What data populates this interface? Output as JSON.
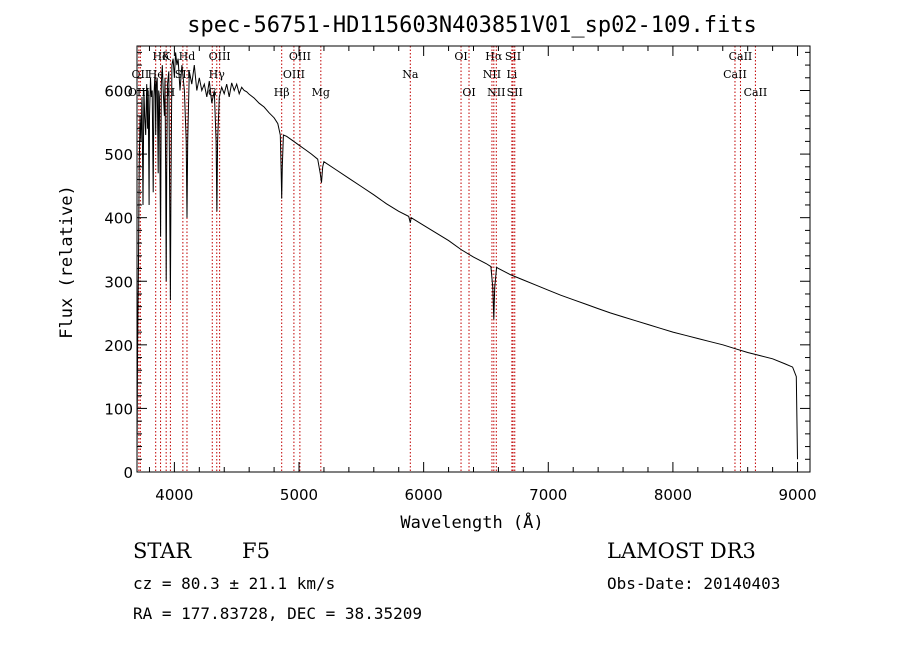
{
  "chart_data": {
    "type": "line",
    "title": "spec-56751-HD115603N403851V01_sp02-109.fits",
    "xlabel": "Wavelength (Å)",
    "ylabel": "Flux (relative)",
    "xlim": [
      3700,
      9100
    ],
    "ylim": [
      0,
      670
    ],
    "x_ticks": [
      4000,
      5000,
      6000,
      7000,
      8000,
      9000
    ],
    "y_ticks": [
      0,
      100,
      200,
      300,
      400,
      500,
      600
    ],
    "series": [
      {
        "name": "spectrum",
        "points": [
          [
            3700,
            20
          ],
          [
            3705,
            200
          ],
          [
            3712,
            330
          ],
          [
            3718,
            480
          ],
          [
            3725,
            560
          ],
          [
            3732,
            520
          ],
          [
            3740,
            590
          ],
          [
            3748,
            420
          ],
          [
            3755,
            600
          ],
          [
            3762,
            560
          ],
          [
            3770,
            530
          ],
          [
            3778,
            610
          ],
          [
            3785,
            540
          ],
          [
            3790,
            600
          ],
          [
            3797,
            420
          ],
          [
            3800,
            560
          ],
          [
            3808,
            620
          ],
          [
            3815,
            590
          ],
          [
            3822,
            600
          ],
          [
            3830,
            440
          ],
          [
            3836,
            590
          ],
          [
            3845,
            630
          ],
          [
            3850,
            530
          ],
          [
            3855,
            610
          ],
          [
            3862,
            620
          ],
          [
            3870,
            470
          ],
          [
            3874,
            600
          ],
          [
            3880,
            590
          ],
          [
            3889,
            370
          ],
          [
            3895,
            610
          ],
          [
            3903,
            640
          ],
          [
            3910,
            600
          ],
          [
            3920,
            560
          ],
          [
            3925,
            620
          ],
          [
            3930,
            460
          ],
          [
            3934,
            300
          ],
          [
            3938,
            470
          ],
          [
            3945,
            610
          ],
          [
            3955,
            630
          ],
          [
            3962,
            430
          ],
          [
            3968,
            270
          ],
          [
            3972,
            430
          ],
          [
            3980,
            640
          ],
          [
            3990,
            650
          ],
          [
            4000,
            620
          ],
          [
            4010,
            660
          ],
          [
            4020,
            640
          ],
          [
            4030,
            650
          ],
          [
            4045,
            600
          ],
          [
            4060,
            640
          ],
          [
            4080,
            600
          ],
          [
            4095,
            520
          ],
          [
            4101,
            400
          ],
          [
            4107,
            520
          ],
          [
            4120,
            630
          ],
          [
            4140,
            610
          ],
          [
            4160,
            640
          ],
          [
            4180,
            600
          ],
          [
            4200,
            620
          ],
          [
            4220,
            600
          ],
          [
            4240,
            610
          ],
          [
            4260,
            590
          ],
          [
            4280,
            615
          ],
          [
            4300,
            580
          ],
          [
            4320,
            600
          ],
          [
            4335,
            520
          ],
          [
            4341,
            410
          ],
          [
            4347,
            520
          ],
          [
            4360,
            590
          ],
          [
            4380,
            605
          ],
          [
            4400,
            595
          ],
          [
            4420,
            610
          ],
          [
            4440,
            590
          ],
          [
            4460,
            612
          ],
          [
            4480,
            600
          ],
          [
            4500,
            610
          ],
          [
            4520,
            595
          ],
          [
            4540,
            605
          ],
          [
            4560,
            600
          ],
          [
            4580,
            598
          ],
          [
            4600,
            594
          ],
          [
            4640,
            588
          ],
          [
            4680,
            580
          ],
          [
            4720,
            574
          ],
          [
            4760,
            565
          ],
          [
            4800,
            557
          ],
          [
            4830,
            548
          ],
          [
            4850,
            530
          ],
          [
            4857,
            470
          ],
          [
            4861,
            430
          ],
          [
            4866,
            480
          ],
          [
            4875,
            530
          ],
          [
            4900,
            528
          ],
          [
            4950,
            521
          ],
          [
            5000,
            514
          ],
          [
            5050,
            507
          ],
          [
            5100,
            500
          ],
          [
            5150,
            492
          ],
          [
            5170,
            470
          ],
          [
            5180,
            455
          ],
          [
            5190,
            480
          ],
          [
            5200,
            488
          ],
          [
            5300,
            475
          ],
          [
            5400,
            462
          ],
          [
            5500,
            449
          ],
          [
            5600,
            436
          ],
          [
            5700,
            422
          ],
          [
            5800,
            410
          ],
          [
            5880,
            402
          ],
          [
            5893,
            392
          ],
          [
            5900,
            400
          ],
          [
            6000,
            388
          ],
          [
            6100,
            376
          ],
          [
            6200,
            364
          ],
          [
            6300,
            350
          ],
          [
            6400,
            338
          ],
          [
            6500,
            328
          ],
          [
            6540,
            323
          ],
          [
            6555,
            290
          ],
          [
            6563,
            240
          ],
          [
            6570,
            290
          ],
          [
            6585,
            322
          ],
          [
            6600,
            320
          ],
          [
            6700,
            310
          ],
          [
            6800,
            302
          ],
          [
            6900,
            294
          ],
          [
            7000,
            286
          ],
          [
            7100,
            278
          ],
          [
            7200,
            271
          ],
          [
            7300,
            264
          ],
          [
            7400,
            257
          ],
          [
            7500,
            250
          ],
          [
            7600,
            244
          ],
          [
            7700,
            238
          ],
          [
            7800,
            232
          ],
          [
            7900,
            226
          ],
          [
            8000,
            220
          ],
          [
            8100,
            215
          ],
          [
            8200,
            210
          ],
          [
            8300,
            205
          ],
          [
            8400,
            200
          ],
          [
            8500,
            194
          ],
          [
            8600,
            188
          ],
          [
            8700,
            183
          ],
          [
            8800,
            178
          ],
          [
            8900,
            170
          ],
          [
            8960,
            165
          ],
          [
            8990,
            150
          ],
          [
            9000,
            20
          ]
        ]
      }
    ],
    "line_markers": [
      {
        "label": "Hδ",
        "x": 3889,
        "row": 0
      },
      {
        "label": "K",
        "x": 3934,
        "row": 0
      },
      {
        "label": "Hd",
        "x": 4101,
        "row": 0
      },
      {
        "label": "OIII",
        "x": 4363,
        "row": 0
      },
      {
        "label": "OIII",
        "x": 5007,
        "row": 0
      },
      {
        "label": "OI",
        "x": 6300,
        "row": 0
      },
      {
        "label": "Hα",
        "x": 6563,
        "row": 0
      },
      {
        "label": "SII",
        "x": 6717,
        "row": 0
      },
      {
        "label": "CaII",
        "x": 8542,
        "row": 0
      },
      {
        "label": "OII",
        "x": 3727,
        "row": 1
      },
      {
        "label": "He",
        "x": 3850,
        "row": 1
      },
      {
        "label": "SII",
        "x": 4068,
        "row": 1
      },
      {
        "label": "Hγ",
        "x": 4340,
        "row": 1
      },
      {
        "label": "OIII",
        "x": 4959,
        "row": 1
      },
      {
        "label": "Na",
        "x": 5893,
        "row": 1
      },
      {
        "label": "NII",
        "x": 6548,
        "row": 1
      },
      {
        "label": "Li",
        "x": 6708,
        "row": 1
      },
      {
        "label": "CaII",
        "x": 8498,
        "row": 1
      },
      {
        "label": "OIII",
        "x": 3715,
        "row": 2
      },
      {
        "label": "H",
        "x": 3968,
        "row": 2
      },
      {
        "label": "G",
        "x": 4304,
        "row": 2
      },
      {
        "label": "Hβ",
        "x": 4861,
        "row": 2
      },
      {
        "label": "Mg",
        "x": 5175,
        "row": 2
      },
      {
        "label": "OI",
        "x": 6364,
        "row": 2
      },
      {
        "label": "NII",
        "x": 6583,
        "row": 2
      },
      {
        "label": "SII",
        "x": 6731,
        "row": 2
      },
      {
        "label": "CaII",
        "x": 8662,
        "row": 2
      }
    ],
    "marker_color": "#c00000"
  },
  "info": {
    "class": "STAR",
    "subclass": "F5",
    "survey": "LAMOST DR3",
    "cz": "cz = 80.3 ± 21.1 km/s",
    "obs_date": "Obs-Date: 20140403",
    "coords": "RA = 177.83728, DEC =  38.35209"
  }
}
